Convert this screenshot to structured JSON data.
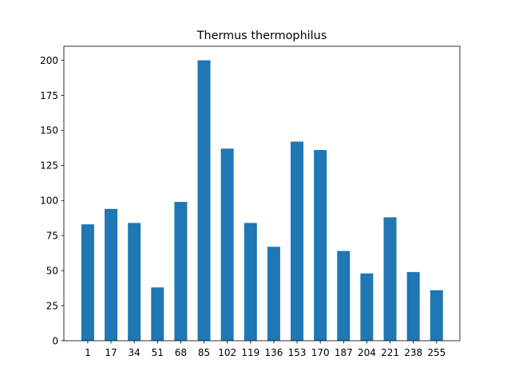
{
  "chart_data": {
    "type": "bar",
    "title": "Thermus thermophilus",
    "xlabel": "",
    "ylabel": "",
    "categories": [
      "1",
      "17",
      "34",
      "51",
      "68",
      "85",
      "102",
      "119",
      "136",
      "153",
      "170",
      "187",
      "204",
      "221",
      "238",
      "255"
    ],
    "values": [
      83,
      94,
      84,
      38,
      99,
      200,
      137,
      84,
      67,
      142,
      136,
      64,
      48,
      88,
      49,
      36
    ],
    "ylim": [
      0,
      210
    ],
    "yticks": [
      0,
      25,
      50,
      75,
      100,
      125,
      150,
      175,
      200
    ],
    "grid": false,
    "legend": "none",
    "bar_color": "#1f77b4"
  }
}
